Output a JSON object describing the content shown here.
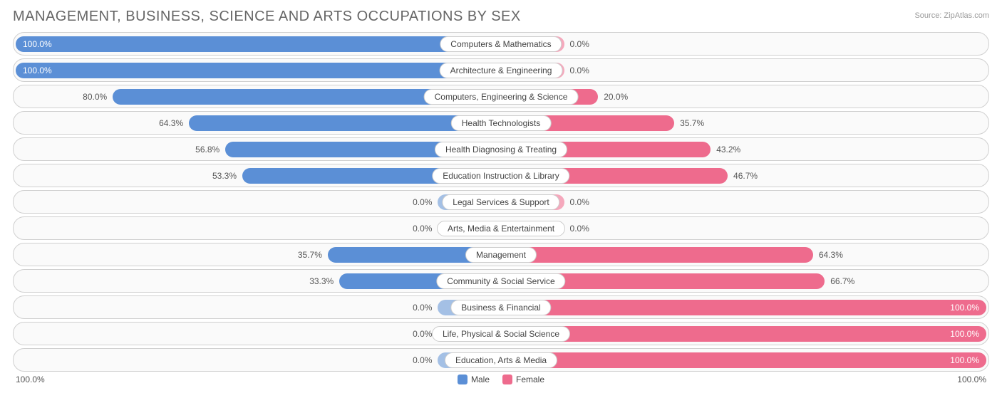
{
  "title": "MANAGEMENT, BUSINESS, SCIENCE AND ARTS OCCUPATIONS BY SEX",
  "source": "Source: ZipAtlas.com",
  "colors": {
    "male_bar": "#5b8fd6",
    "male_bar_zero": "#a4c0e5",
    "female_bar": "#ee6b8d",
    "female_bar_zero": "#f5a8bc",
    "row_border": "#d0d0d0",
    "row_bg": "#fafafa",
    "label_border": "#cccccc",
    "text": "#555555"
  },
  "axis": {
    "left": "100.0%",
    "right": "100.0%"
  },
  "legend": {
    "male": "Male",
    "female": "Female"
  },
  "min_bar_pct": 13,
  "rows": [
    {
      "label": "Computers & Mathematics",
      "male": 100.0,
      "female": 0.0,
      "male_txt": "100.0%",
      "female_txt": "0.0%"
    },
    {
      "label": "Architecture & Engineering",
      "male": 100.0,
      "female": 0.0,
      "male_txt": "100.0%",
      "female_txt": "0.0%"
    },
    {
      "label": "Computers, Engineering & Science",
      "male": 80.0,
      "female": 20.0,
      "male_txt": "80.0%",
      "female_txt": "20.0%"
    },
    {
      "label": "Health Technologists",
      "male": 64.3,
      "female": 35.7,
      "male_txt": "64.3%",
      "female_txt": "35.7%"
    },
    {
      "label": "Health Diagnosing & Treating",
      "male": 56.8,
      "female": 43.2,
      "male_txt": "56.8%",
      "female_txt": "43.2%"
    },
    {
      "label": "Education Instruction & Library",
      "male": 53.3,
      "female": 46.7,
      "male_txt": "53.3%",
      "female_txt": "46.7%"
    },
    {
      "label": "Legal Services & Support",
      "male": 0.0,
      "female": 0.0,
      "male_txt": "0.0%",
      "female_txt": "0.0%"
    },
    {
      "label": "Arts, Media & Entertainment",
      "male": 0.0,
      "female": 0.0,
      "male_txt": "0.0%",
      "female_txt": "0.0%"
    },
    {
      "label": "Management",
      "male": 35.7,
      "female": 64.3,
      "male_txt": "35.7%",
      "female_txt": "64.3%"
    },
    {
      "label": "Community & Social Service",
      "male": 33.3,
      "female": 66.7,
      "male_txt": "33.3%",
      "female_txt": "66.7%"
    },
    {
      "label": "Business & Financial",
      "male": 0.0,
      "female": 100.0,
      "male_txt": "0.0%",
      "female_txt": "100.0%"
    },
    {
      "label": "Life, Physical & Social Science",
      "male": 0.0,
      "female": 100.0,
      "male_txt": "0.0%",
      "female_txt": "100.0%"
    },
    {
      "label": "Education, Arts & Media",
      "male": 0.0,
      "female": 100.0,
      "male_txt": "0.0%",
      "female_txt": "100.0%"
    }
  ]
}
